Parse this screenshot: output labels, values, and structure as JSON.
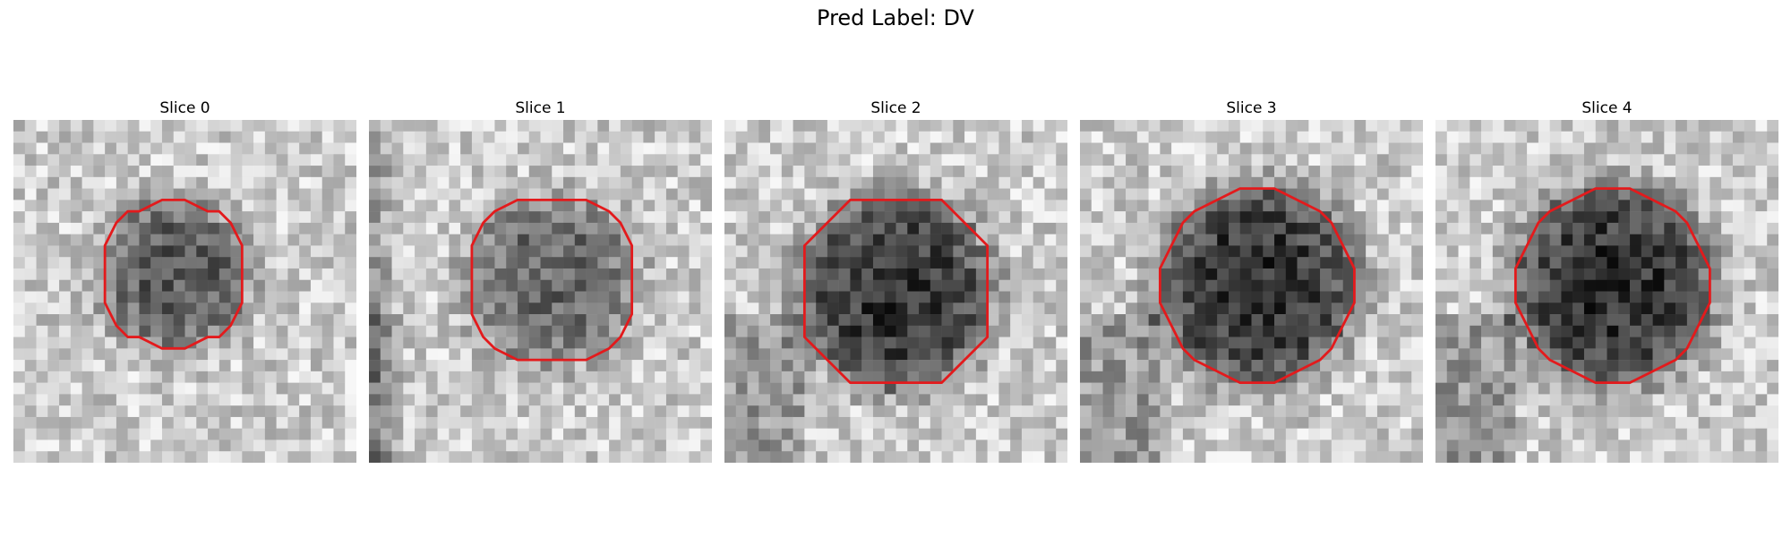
{
  "figure": {
    "title": "Pred Label: DV"
  },
  "panels": [
    {
      "title": "Slice 0",
      "seed": 11,
      "darkness": 0.45
    },
    {
      "title": "Slice 1",
      "seed": 23,
      "darkness": 0.4
    },
    {
      "title": "Slice 2",
      "seed": 37,
      "darkness": 0.6
    },
    {
      "title": "Slice 3",
      "seed": 41,
      "darkness": 0.62
    },
    {
      "title": "Slice 4",
      "seed": 53,
      "darkness": 0.62
    }
  ],
  "colors": {
    "contour": "#e31a1c",
    "background": "#ffffff"
  },
  "grid_size": 30
}
